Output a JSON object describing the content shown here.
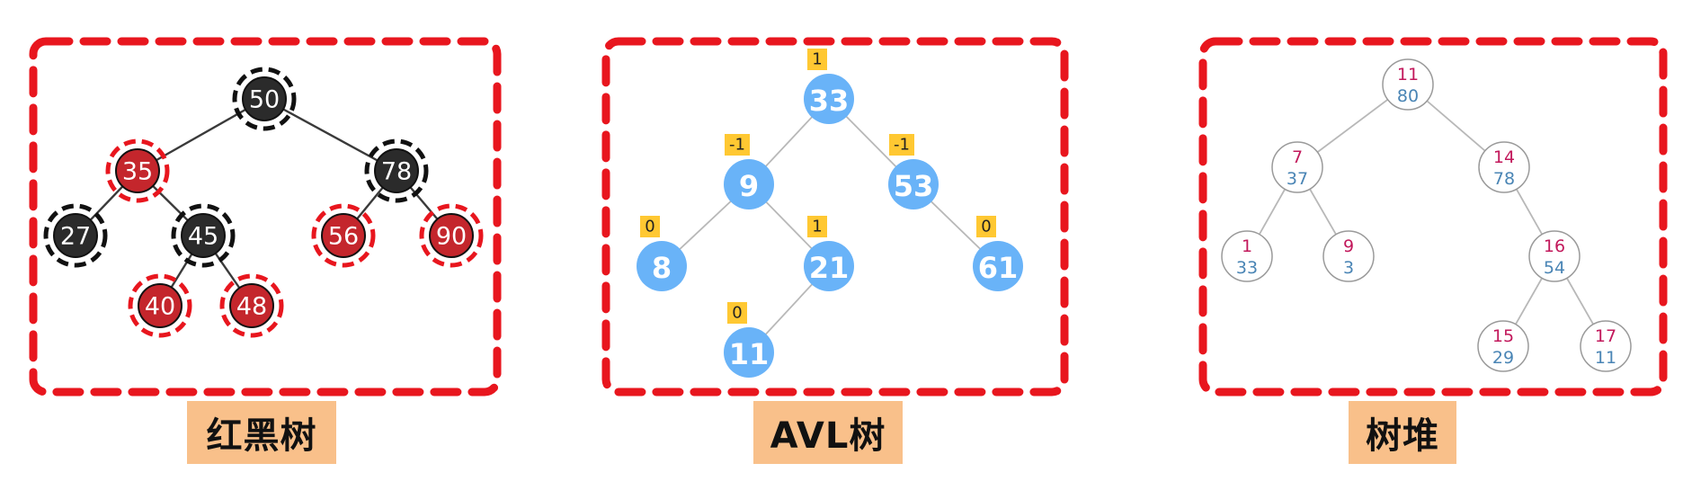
{
  "colors": {
    "frame": "#e8161e",
    "rb_black_node": "#2b2b2b",
    "rb_red_node": "#c4262c",
    "avl_node": "#69b3f8",
    "balance_badge": "#ffc832",
    "heap_node_stroke": "#9a9a9a",
    "heap_key": "#c2185b",
    "heap_priority": "#4a85b5",
    "caption_bg": "#f9c08a"
  },
  "panels": [
    {
      "caption": "红黑树",
      "tree": {
        "nodes": [
          {
            "id": "n50",
            "label": "50",
            "color": "black"
          },
          {
            "id": "n35",
            "label": "35",
            "color": "red"
          },
          {
            "id": "n78",
            "label": "78",
            "color": "black"
          },
          {
            "id": "n27",
            "label": "27",
            "color": "black"
          },
          {
            "id": "n45",
            "label": "45",
            "color": "black"
          },
          {
            "id": "n56",
            "label": "56",
            "color": "red"
          },
          {
            "id": "n90",
            "label": "90",
            "color": "red"
          },
          {
            "id": "n40",
            "label": "40",
            "color": "red"
          },
          {
            "id": "n48",
            "label": "48",
            "color": "red"
          }
        ],
        "edges": [
          [
            "n50",
            "n35"
          ],
          [
            "n50",
            "n78"
          ],
          [
            "n35",
            "n27"
          ],
          [
            "n35",
            "n45"
          ],
          [
            "n78",
            "n56"
          ],
          [
            "n78",
            "n90"
          ],
          [
            "n45",
            "n40"
          ],
          [
            "n45",
            "n48"
          ]
        ]
      }
    },
    {
      "caption": "AVL树",
      "tree": {
        "nodes": [
          {
            "id": "a33",
            "label": "33",
            "balance": "1"
          },
          {
            "id": "a9",
            "label": "9",
            "balance": "-1"
          },
          {
            "id": "a53",
            "label": "53",
            "balance": "-1"
          },
          {
            "id": "a8",
            "label": "8",
            "balance": "0"
          },
          {
            "id": "a21",
            "label": "21",
            "balance": "1"
          },
          {
            "id": "a61",
            "label": "61",
            "balance": "0"
          },
          {
            "id": "a11",
            "label": "11",
            "balance": "0"
          }
        ],
        "edges": [
          [
            "a33",
            "a9"
          ],
          [
            "a33",
            "a53"
          ],
          [
            "a9",
            "a8"
          ],
          [
            "a9",
            "a21"
          ],
          [
            "a53",
            "a61"
          ],
          [
            "a21",
            "a11"
          ]
        ]
      }
    },
    {
      "caption": "树堆",
      "tree": {
        "nodes": [
          {
            "id": "h11",
            "key": "11",
            "priority": "80"
          },
          {
            "id": "h7",
            "key": "7",
            "priority": "37"
          },
          {
            "id": "h14",
            "key": "14",
            "priority": "78"
          },
          {
            "id": "h1",
            "key": "1",
            "priority": "33"
          },
          {
            "id": "h9",
            "key": "9",
            "priority": "3"
          },
          {
            "id": "h16",
            "key": "16",
            "priority": "54"
          },
          {
            "id": "h15",
            "key": "15",
            "priority": "29"
          },
          {
            "id": "h17",
            "key": "17",
            "priority": "11"
          }
        ],
        "edges": [
          [
            "h11",
            "h7"
          ],
          [
            "h11",
            "h14"
          ],
          [
            "h7",
            "h1"
          ],
          [
            "h7",
            "h9"
          ],
          [
            "h14",
            "h16"
          ],
          [
            "h16",
            "h15"
          ],
          [
            "h16",
            "h17"
          ]
        ]
      }
    }
  ]
}
